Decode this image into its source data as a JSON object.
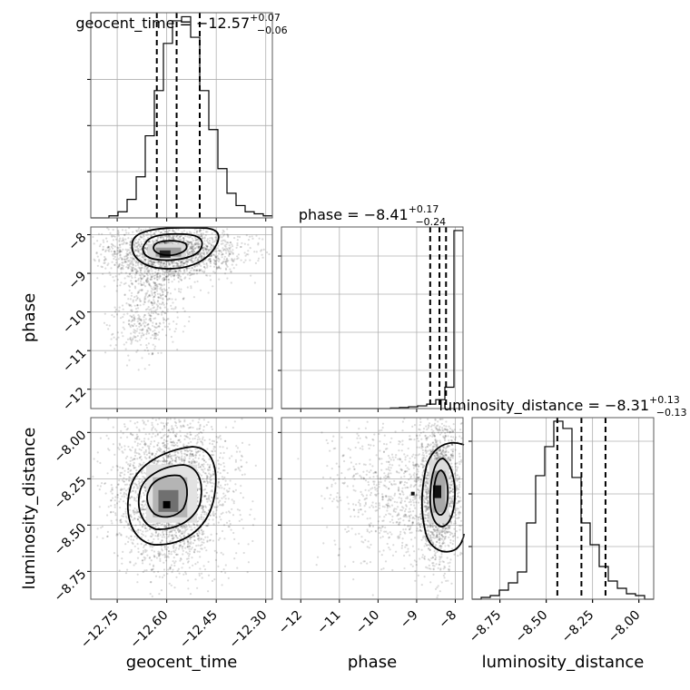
{
  "chart_data": {
    "type": "corner",
    "parameters": [
      {
        "name": "geocent_time",
        "title_prefix": "geocent_time = ",
        "median": "−12.57",
        "plus": "+0.07",
        "minus": "−0.06",
        "range": [
          -12.83,
          -12.28
        ],
        "ticks": [
          -12.75,
          -12.6,
          -12.45,
          -12.3
        ],
        "tick_labels": [
          "−12.75",
          "−12.60",
          "−12.45",
          "−12.30"
        ],
        "quantiles": [
          -12.63,
          -12.57,
          -12.5
        ],
        "hist_edges_start": -12.83,
        "hist_bin_width": 0.0275,
        "hist_counts": [
          0,
          0,
          1,
          3,
          9,
          20,
          40,
          62,
          85,
          96,
          98,
          88,
          62,
          43,
          24,
          12,
          6,
          3,
          2,
          1
        ]
      },
      {
        "name": "phase",
        "title_prefix": "phase = ",
        "median": "−8.41",
        "plus": "+0.17",
        "minus": "−0.24",
        "range": [
          -12.5,
          -7.8
        ],
        "ticks": [
          -12,
          -11,
          -10,
          -9,
          -8
        ],
        "tick_labels": [
          "−12",
          "−11",
          "−10",
          "−9",
          "−8"
        ],
        "quantiles": [
          -8.65,
          -8.41,
          -8.24
        ],
        "hist_edges_start": -12.5,
        "hist_bin_width": 0.235,
        "hist_counts": [
          0,
          0,
          0,
          0,
          0,
          0,
          0,
          0,
          0,
          0,
          0,
          0,
          0.3,
          0.6,
          1,
          1.5,
          2.5,
          5,
          12,
          100
        ]
      },
      {
        "name": "luminosity_distance",
        "title_prefix": "luminosity_distance = ",
        "median": "−8.31",
        "plus": "+0.13",
        "minus": "−0.13",
        "range": [
          -8.9,
          -7.92
        ],
        "ticks": [
          -8.75,
          -8.5,
          -8.25,
          -8.0
        ],
        "tick_labels": [
          "−8.75",
          "−8.50",
          "−8.25",
          "−8.00"
        ],
        "quantiles": [
          -8.44,
          -8.31,
          -8.18
        ],
        "hist_edges_start": -8.9,
        "hist_bin_width": 0.049,
        "hist_counts": [
          0,
          1,
          2,
          5,
          9,
          15,
          42,
          68,
          84,
          98,
          94,
          67,
          42,
          30,
          18,
          10,
          6,
          3,
          2,
          0
        ]
      }
    ],
    "density": {
      "phase_vs_geocent_time": {
        "center": [
          -12.585,
          -8.45
        ],
        "spread": [
          0.07,
          0.28
        ],
        "tail": {
          "from": [
            -12.62,
            -8.6
          ],
          "to": [
            -12.68,
            -10.8
          ]
        }
      },
      "luminosity_distance_vs_geocent_time": {
        "center": [
          -12.585,
          -8.33
        ],
        "spread": [
          0.065,
          0.17
        ]
      },
      "luminosity_distance_vs_phase": {
        "center": [
          -8.42,
          -8.32
        ],
        "spread": [
          0.25,
          0.16
        ]
      }
    },
    "grid": true
  }
}
